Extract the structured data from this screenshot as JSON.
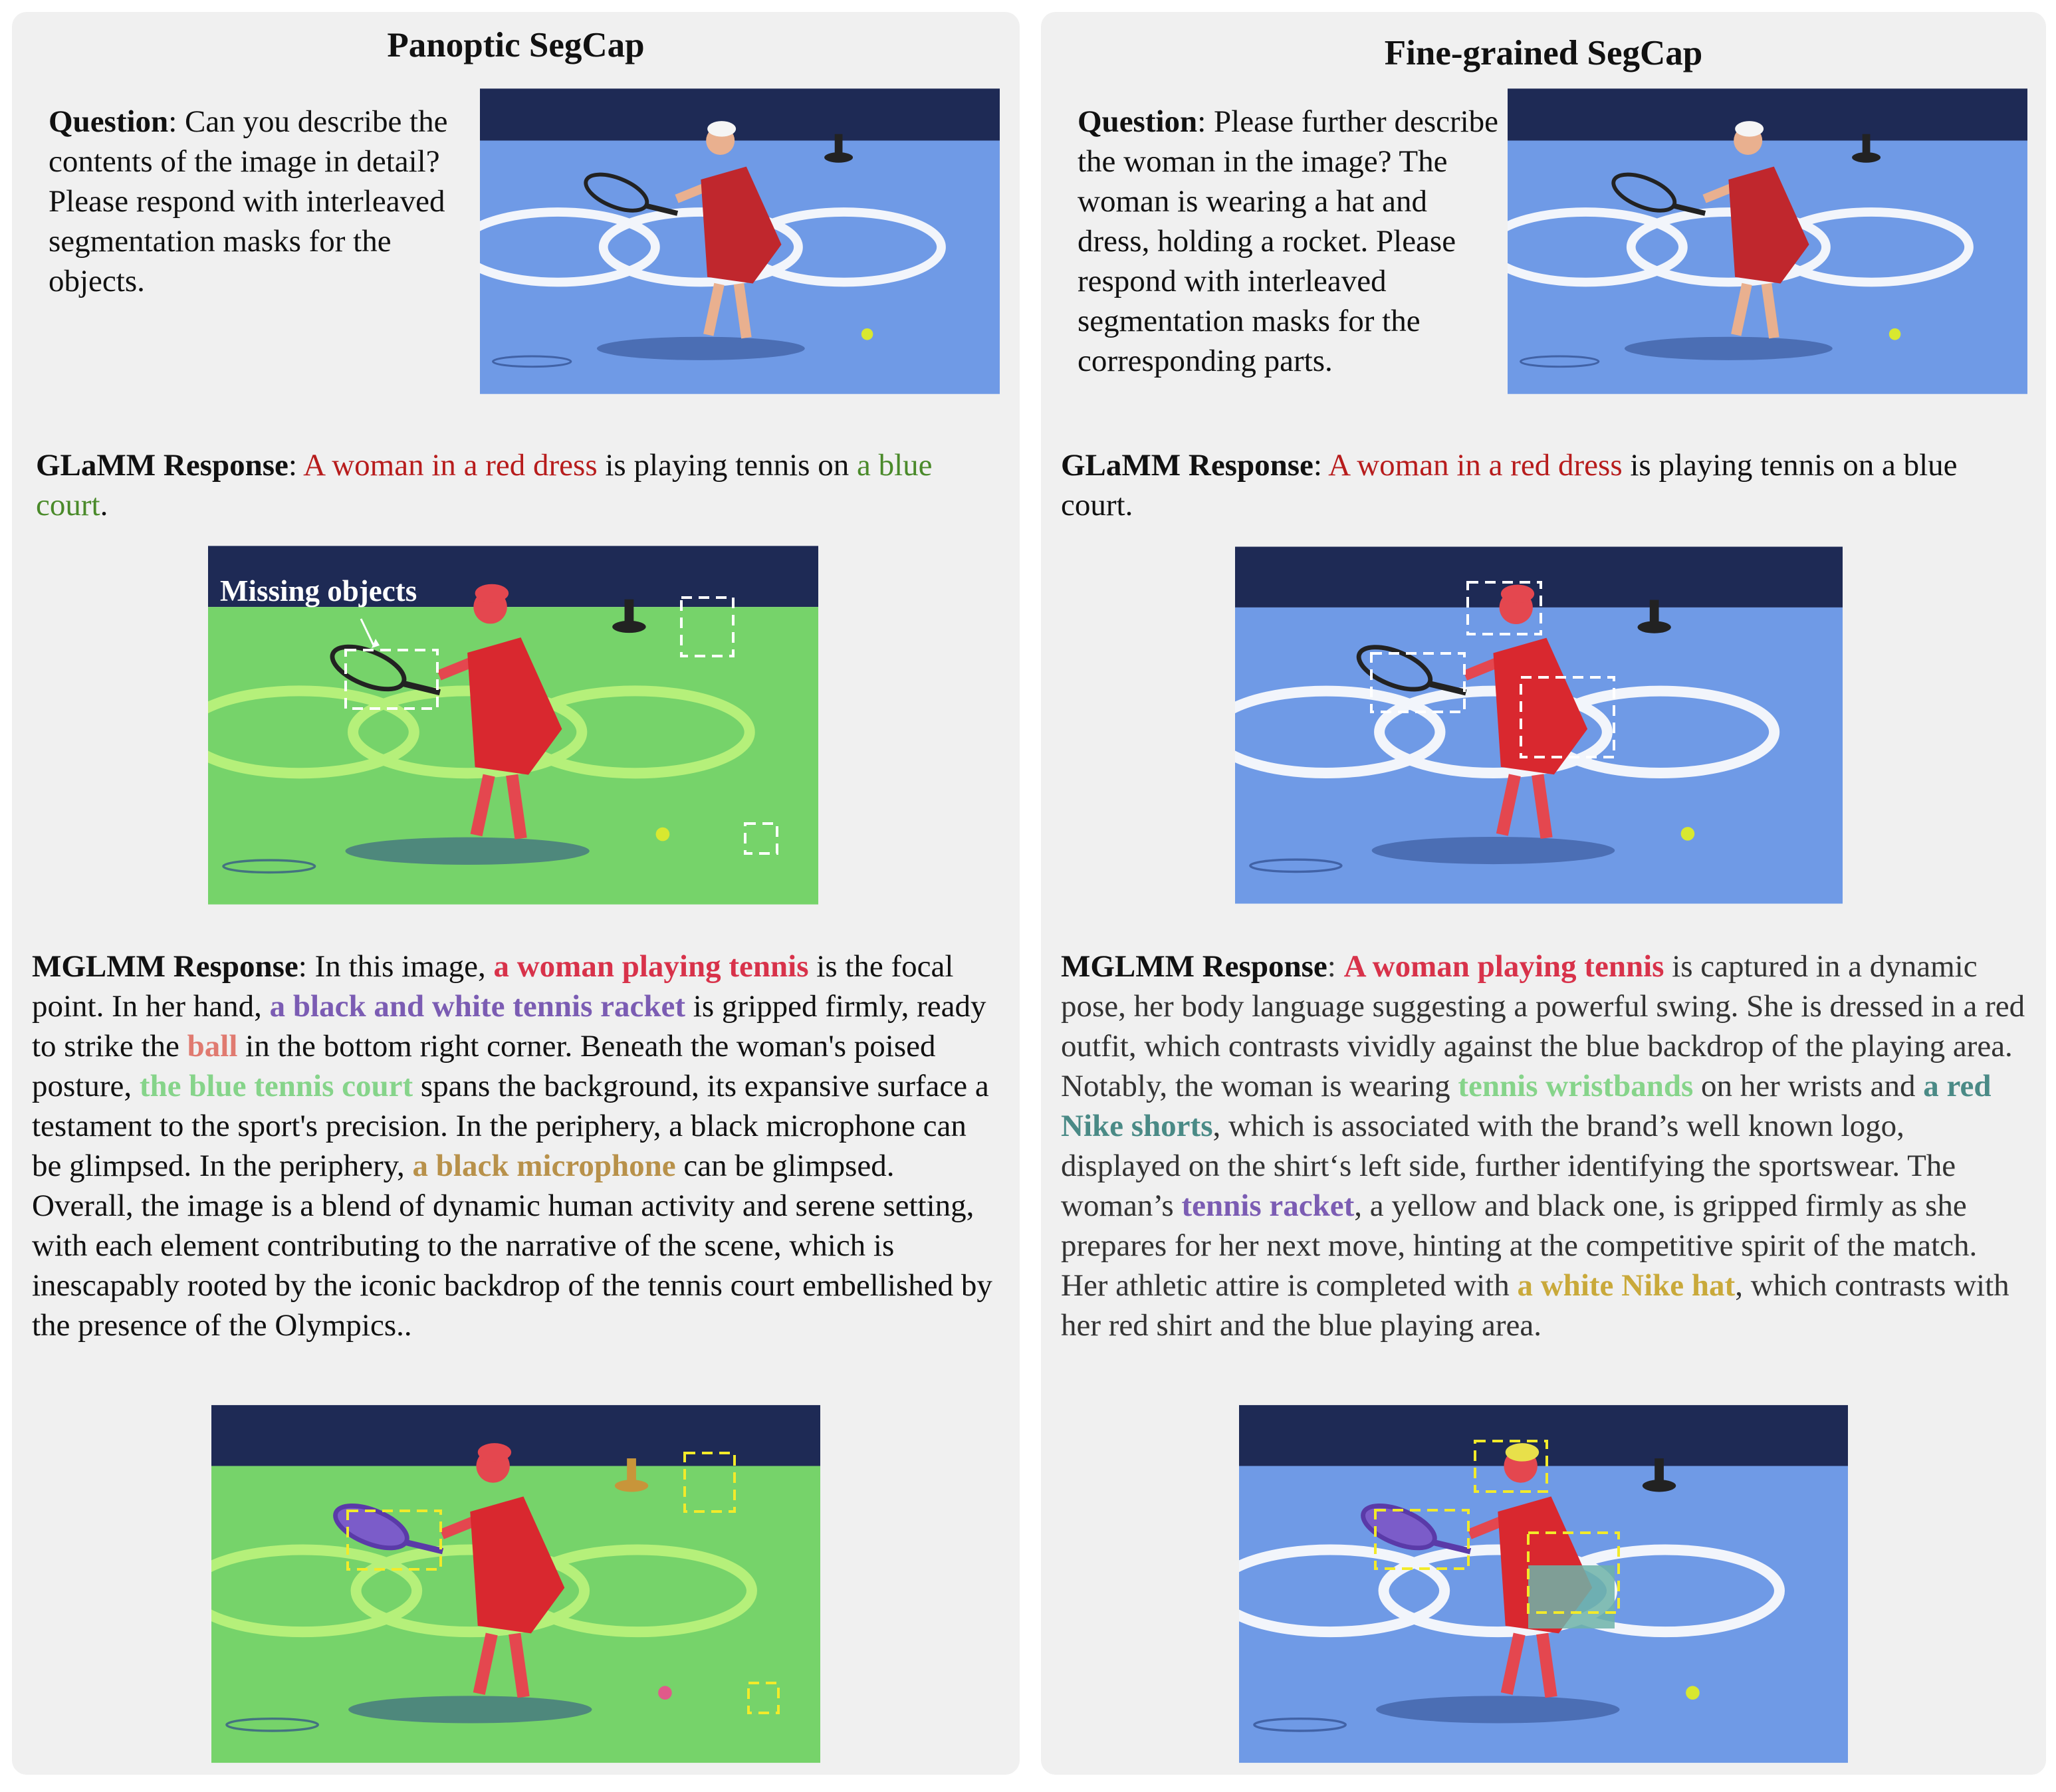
{
  "left": {
    "title": "Panoptic SegCap",
    "question": {
      "label": "Question",
      "text": ": Can you describe the contents of the image in detail? Please respond with interleaved segmentation masks for the objects."
    },
    "glamm": {
      "label": "GLaMM Response",
      "sep": ": ",
      "p1": "A woman in a red dress",
      "p2": " is playing tennis on ",
      "p3": "a blue court",
      "p4": "."
    },
    "missing_label": "Missing objects",
    "mglmm": {
      "label": "MGLMM Response",
      "t1": ": In this image, ",
      "h1": "a woman playing tennis",
      "t2": " is the focal point. In her hand, ",
      "h2": "a black and white tennis racket",
      "t3": " is gripped firmly, ready to strike the ",
      "h3": "ball",
      "t4": " in the bottom right corner. Beneath the woman's poised posture, ",
      "h4": "the blue tennis court",
      "t5": " spans the background, its expansive surface a testament to the sport's precision. In the periphery, a black microphone can be glimpsed. In the periphery, ",
      "h5": "a black microphone",
      "t6": " can be glimpsed. Overall, the image is a blend of dynamic human activity and serene setting, with each element contributing to the narrative of the scene, which is inescapably rooted by the iconic backdrop of the tennis court embellished by the presence of the Olympics.."
    }
  },
  "right": {
    "title": "Fine-grained SegCap",
    "question": {
      "label": "Question",
      "text": ": Please further describe the woman in the image? The woman is wearing a hat and dress, holding a rocket. Please respond with interleaved segmentation masks for the corresponding parts."
    },
    "glamm": {
      "label": "GLaMM Response",
      "sep": ": ",
      "p1": "A woman in a red dress",
      "p2": " is playing tennis on a blue court."
    },
    "mglmm": {
      "label": "MGLMM Response",
      "t1": ": ",
      "h1": "A woman playing tennis",
      "t2": " is captured in a dynamic pose, her body language suggesting a powerful swing. She is dressed in a red outfit, which contrasts vividly against the blue backdrop of the playing area. Notably, the woman is wearing ",
      "h2": "tennis wristbands",
      "t3": " on her wrists and ",
      "h3": "a red Nike shorts",
      "t4": ", which is associated with the brand’s well known logo, displayed on the shirt‘s left side, further identifying the sportswear. The woman’s ",
      "h4": "tennis racket",
      "t5": ", a yellow and black one, is gripped firmly as she prepares for her next move, hinting at the competitive spirit of the match. Her athletic attire is completed with ",
      "h5": "a white Nike hat",
      "t6": ", which contrasts with her red shirt and the blue playing area."
    }
  }
}
